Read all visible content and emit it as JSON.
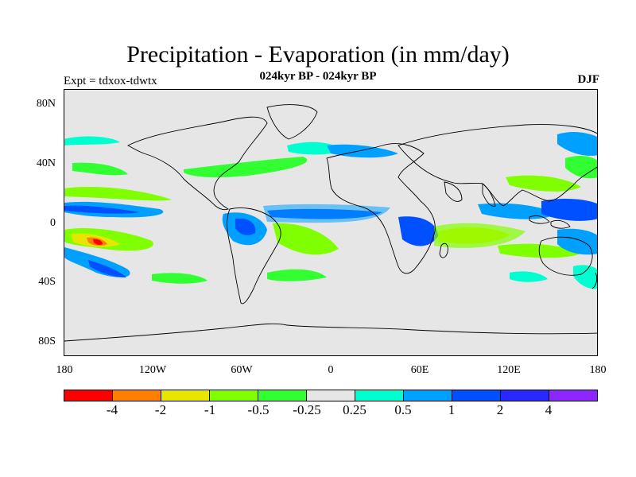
{
  "title": "Precipitation - Evaporation (in mm/day)",
  "subtitle": "024kyr BP - 024kyr BP",
  "experiment": "Expt = tdxox-tdwtx",
  "season": "DJF",
  "map": {
    "background": "#e6e6e6",
    "lat_labels": [
      "80N",
      "40N",
      "0",
      "40S",
      "80S"
    ],
    "lon_labels": [
      "180",
      "120W",
      "60W",
      "0",
      "60E",
      "120E",
      "180"
    ]
  },
  "colorbar": {
    "colors": [
      "#ff0000",
      "#ff8000",
      "#e6e600",
      "#80ff00",
      "#32ff32",
      "#e6e6e6",
      "#00ffd0",
      "#00a0ff",
      "#0050ff",
      "#2828ff",
      "#8c28ff"
    ],
    "labels": [
      "-4",
      "-2",
      "-1",
      "-0.5",
      "-0.25",
      "0.25",
      "0.5",
      "1",
      "2",
      "4"
    ]
  }
}
